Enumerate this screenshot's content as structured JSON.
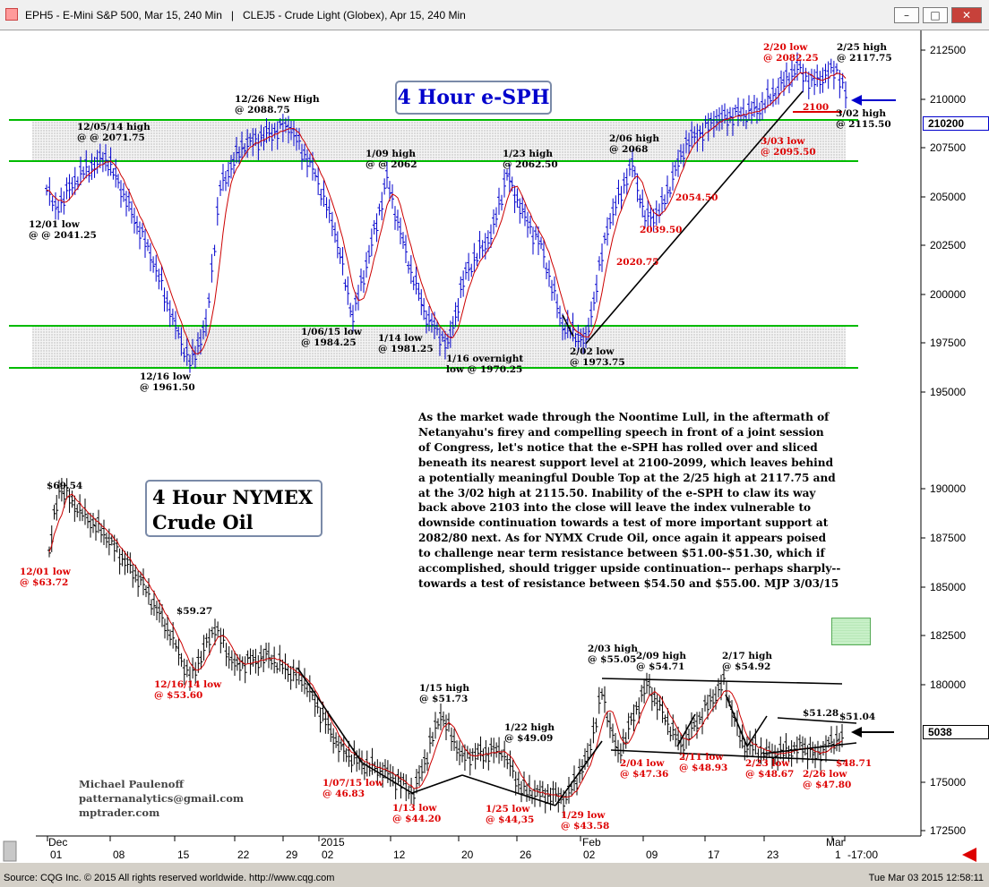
{
  "window": {
    "title": "EPH5 - E-Mini S&P 500, Mar 15, 240 Min   |   CLEJ5 - Crude Light (Globex), Apr 15, 240 Min",
    "buttons": {
      "minimize": "–",
      "restore": "□",
      "close": "✕"
    }
  },
  "status": {
    "left": "Source: CQG Inc. © 2015 All rights reserved worldwide. http://www.cqg.com",
    "right": "Tue Mar 03 2015 12:58:11"
  },
  "colors": {
    "price_bar": "#0000cc",
    "moving_avg": "#cc0000",
    "support": "#00bb00",
    "trendline": "#000000",
    "annotation_low": "#dd0000"
  },
  "chart_data": [
    {
      "type": "line",
      "title": "4 Hour e-SPH",
      "y_axis_labels": [
        "212500",
        "210000",
        "207500",
        "205000",
        "202500",
        "200000",
        "197500",
        "195000"
      ],
      "last_price": "210200",
      "support_zones": [
        [
          "2062",
          "2071.75"
        ],
        [
          "1961.50",
          "1984.25"
        ]
      ],
      "series": [
        {
          "name": "",
          "points": [
            [
              "12/01 low",
              2041.25
            ],
            [
              "12/05/14 high",
              2071.75
            ],
            [
              "12/16 low",
              1961.5
            ],
            [
              "12/26 New High",
              2088.75
            ],
            [
              "1/06/15 low",
              1984.25
            ],
            [
              "1/09 high",
              2062
            ],
            [
              "1/14 low",
              1981.25
            ],
            [
              "1/16 overnight low",
              1970.25
            ],
            [
              "1/23 high",
              2062.5
            ],
            [
              "2/02 low",
              1973.75
            ],
            [
              "2/06 high",
              2068
            ],
            [
              "2/20 low",
              2082.25
            ],
            [
              "2/25 high",
              2117.75
            ],
            [
              "3/02 high",
              2115.5
            ],
            [
              "3/03 low",
              2095.5
            ]
          ]
        }
      ],
      "annotations": [
        {
          "line1": "12/01 low",
          "line2": "@ @ 2041.25",
          "red": false
        },
        {
          "line1": "12/05/14 high",
          "line2": "@ @ 2071.75",
          "red": false
        },
        {
          "line1": "12/26 New High",
          "line2": "@ 2088.75",
          "red": false
        },
        {
          "line1": "12/16 low",
          "line2": "@ 1961.50",
          "red": false
        },
        {
          "line1": "1/06/15 low",
          "line2": "@ 1984.25",
          "red": false
        },
        {
          "line1": "1/09 high",
          "line2": "@ @ 2062",
          "red": false
        },
        {
          "line1": "1/14 low",
          "line2": "@ 1981.25",
          "red": false
        },
        {
          "line1": "1/16 overnight",
          "line2": "low @ 1970.25",
          "red": false
        },
        {
          "line1": "1/23 high",
          "line2": "@ 2062.50",
          "red": false
        },
        {
          "line1": "2/02 low",
          "line2": "@ 1973.75",
          "red": false
        },
        {
          "line1": "2/06 high",
          "line2": "@ 2068",
          "red": false
        },
        {
          "line1": "2/25 high",
          "line2": "@ 2117.75",
          "red": false
        },
        {
          "line1": "3/02 high",
          "line2": "@ 2115.50",
          "red": false
        },
        {
          "line1": "3/03 low",
          "line2": "@ 2095.50",
          "red": true
        },
        {
          "line1": "2/20 low",
          "line2": "@ 2082.25",
          "red": true
        }
      ],
      "level_labels": [
        "2100",
        "2054.50",
        "2039.50",
        "2020.75"
      ]
    },
    {
      "type": "line",
      "title": "4 Hour NYMEX Crude Oil",
      "title_lines": [
        "4 Hour NYMEX",
        "Crude Oil"
      ],
      "y_axis_labels": [
        "190000",
        "187500",
        "185000",
        "182500",
        "180000",
        "5038",
        "175000",
        "172500"
      ],
      "y_axis_note": "shared axis labels reused from window (CL overlay)",
      "last_price": "5038",
      "series": [
        {
          "name": "",
          "points": [
            [
              "12/01 low",
              63.72
            ],
            [
              "high",
              69.54
            ],
            [
              "high",
              59.27
            ],
            [
              "12/16/14 low",
              53.6
            ],
            [
              "1/07/15 low",
              46.83
            ],
            [
              "1/13 low",
              44.2
            ],
            [
              "1/15 high",
              51.73
            ],
            [
              "1/22 high",
              49.09
            ],
            [
              "1/25 low",
              44.35
            ],
            [
              "1/29 low",
              43.58
            ],
            [
              "2/03 high",
              55.05
            ],
            [
              "2/04 low",
              47.36
            ],
            [
              "2/09 high",
              54.71
            ],
            [
              "2/11 low",
              48.93
            ],
            [
              "2/17 high",
              54.92
            ],
            [
              "2/23 low",
              48.67
            ],
            [
              "51.28",
              51.28
            ],
            [
              "2/26 low",
              47.8
            ],
            [
              "51.04",
              51.04
            ],
            [
              "48.71",
              48.71
            ]
          ]
        }
      ],
      "annotations": [
        {
          "line1": "",
          "line2": "$69.54",
          "red": false
        },
        {
          "line1": "12/01 low",
          "line2": "@ $63.72",
          "red": true
        },
        {
          "line1": "",
          "line2": "$59.27",
          "red": false
        },
        {
          "line1": "12/16/14 low",
          "line2": "@ $53.60",
          "red": true
        },
        {
          "line1": "1/07/15 low",
          "line2": "@ 46.83",
          "red": true
        },
        {
          "line1": "1/13 low",
          "line2": "@ $44.20",
          "red": true
        },
        {
          "line1": "1/15 high",
          "line2": "@ $51.73",
          "red": false
        },
        {
          "line1": "1/22 high",
          "line2": "@ $49.09",
          "red": false
        },
        {
          "line1": "1/25 low",
          "line2": "@ $44,35",
          "red": true
        },
        {
          "line1": "1/29 low",
          "line2": "@ $43.58",
          "red": true
        },
        {
          "line1": "2/03 high",
          "line2": "@ $55.05",
          "red": false
        },
        {
          "line1": "2/09 high",
          "line2": "@ $54.71",
          "red": false
        },
        {
          "line1": "2/17 high",
          "line2": "@ $54.92",
          "red": false
        },
        {
          "line1": "2/04 low",
          "line2": "@ $47.36",
          "red": true
        },
        {
          "line1": "2/11 low",
          "line2": "@ $48.93",
          "red": true
        },
        {
          "line1": "2/23 low",
          "line2": "@ $48.67",
          "red": true
        },
        {
          "line1": "2/26 low",
          "line2": "@ $47.80",
          "red": true
        },
        {
          "line1": "",
          "line2": "$51.28",
          "red": false
        },
        {
          "line1": "",
          "line2": "$51.04",
          "red": false
        },
        {
          "line1": "",
          "line2": "$48.71",
          "red": true
        }
      ]
    }
  ],
  "x_axis": {
    "ticks": [
      "01",
      "08",
      "15",
      "22",
      "29",
      "02",
      "12",
      "20",
      "26",
      "02",
      "09",
      "17",
      "23",
      "1",
      "-17:00"
    ],
    "months": [
      "Dec",
      "2015",
      "Feb",
      "Mar"
    ]
  },
  "commentary": "As the market wade through the Noontime Lull, in the aftermath of\nNetanyahu's firey and compelling speech in front of a joint session\nof Congress, let's notice that the e-SPH has rolled over and sliced\nbeneath its nearest support level at 2100-2099, which leaves behind\na potentially meaningful Double Top at the 2/25 high at 2117.75 and\nat the 3/02 high at 2115.50. Inability of the e-SPH to claw its way\nback above 2103 into the close will leave the index vulnerable to\ndownside continuation towards a test of more important support at\n2082/80 next. As for NYMX Crude Oil, once again it appears poised\nto challenge near term resistance between $51.00-$51.30, which if\naccomplished, should trigger upside continuation-- perhaps sharply--\ntowards a test of resistance between $54.50 and $55.00. MJP 3/03/15",
  "signature": "Michael Paulenoff\npatternanalytics@gmail.com\nmptrader.com"
}
